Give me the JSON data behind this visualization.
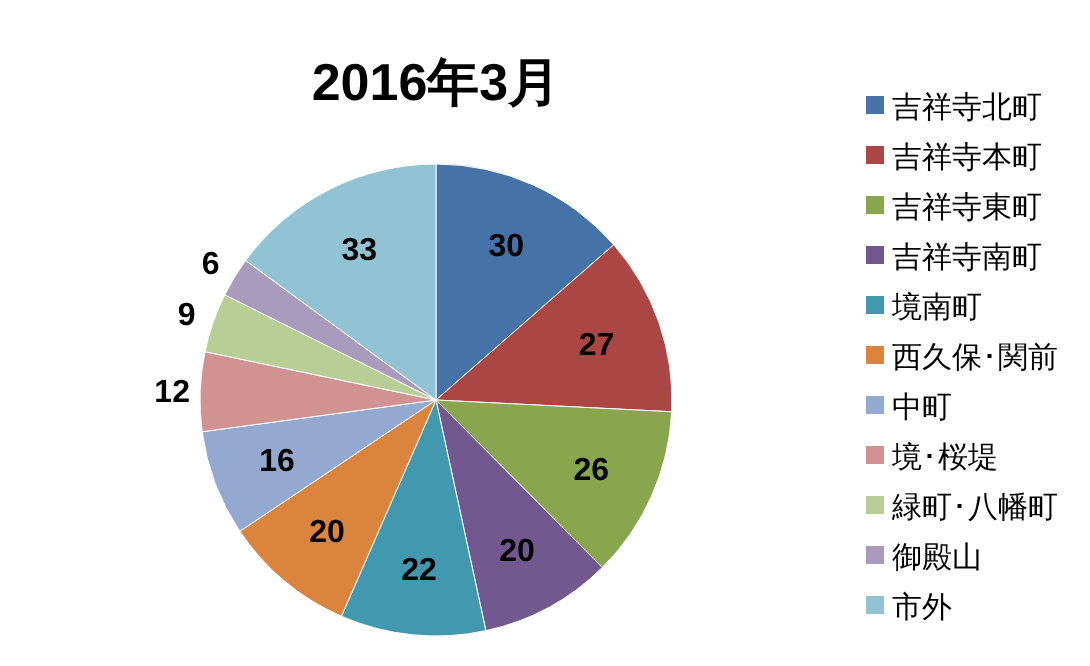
{
  "chart_data": {
    "type": "pie",
    "title": "2016年3月",
    "categories": [
      "吉祥寺北町",
      "吉祥寺本町",
      "吉祥寺東町",
      "吉祥寺南町",
      "境南町",
      "西久保･関前",
      "中町",
      "境･桜堤",
      "緑町･八幡町",
      "御殿山",
      "市外"
    ],
    "values": [
      30,
      27,
      26,
      20,
      22,
      20,
      16,
      12,
      9,
      6,
      33
    ],
    "colors": [
      "#4572a7",
      "#aa4643",
      "#89a54e",
      "#71588f",
      "#4198af",
      "#db843d",
      "#93a9cf",
      "#d19392",
      "#b9cd96",
      "#a99bbd",
      "#92c3d4"
    ],
    "data_labels": true,
    "legend": "right"
  }
}
